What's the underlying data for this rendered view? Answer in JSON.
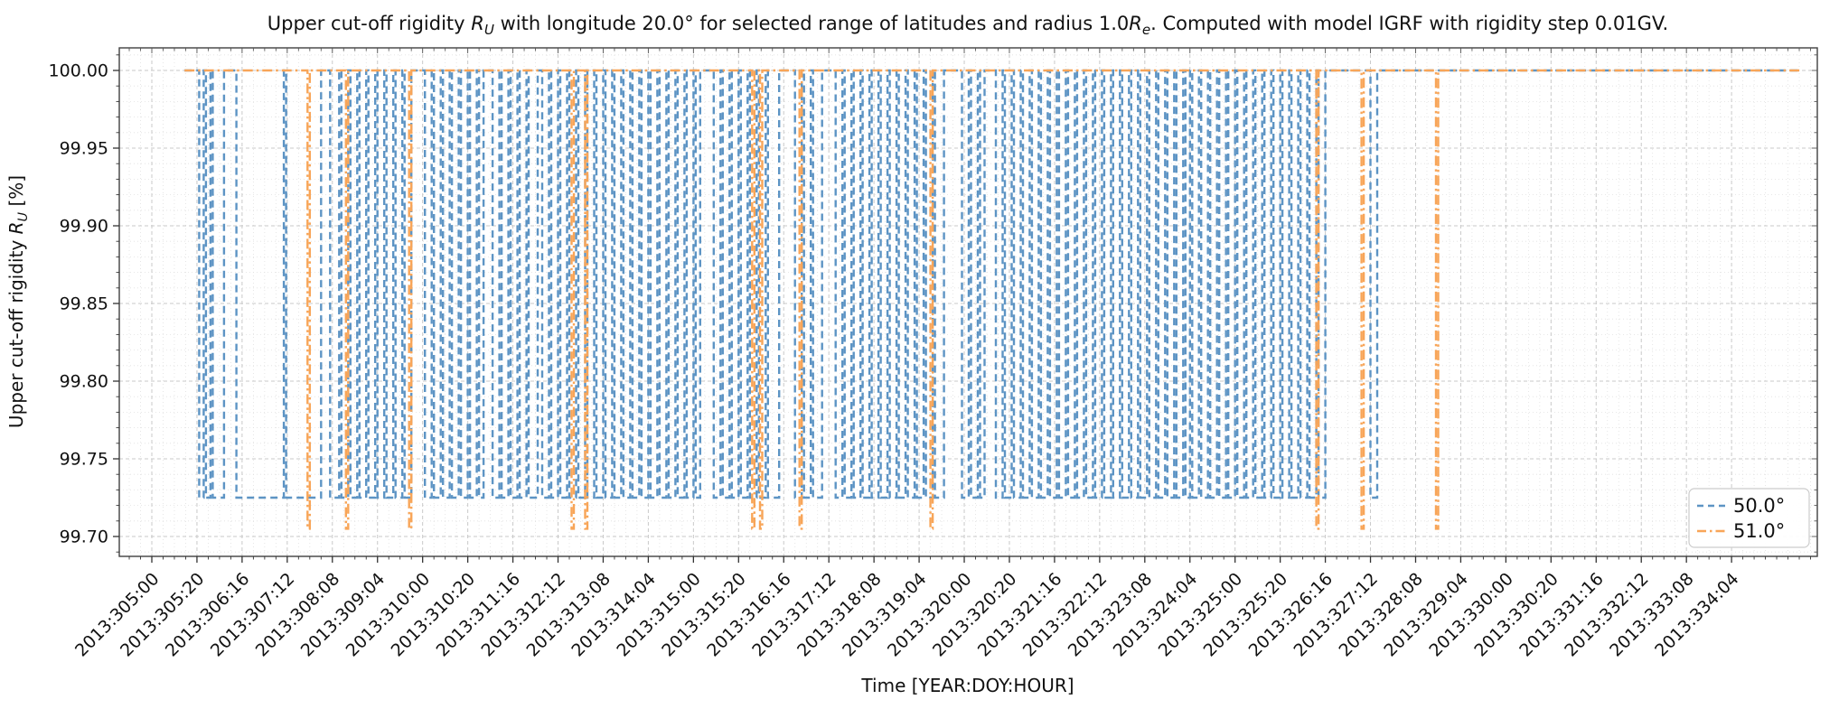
{
  "chart_data": {
    "type": "line",
    "title_plain": "Upper cut-off rigidity R_U with longitude 20.0° for selected range of latitudes and radius 1.0R_e. Computed with model IGRF with rigidity step 0.01GV.",
    "title_parts": [
      {
        "t": "Upper cut-off rigidity "
      },
      {
        "t": "R",
        "i": 1
      },
      {
        "t": "U",
        "i": 1,
        "s": 1
      },
      {
        "t": " with longitude 20.0° for selected range of latitudes and radius 1.0"
      },
      {
        "t": "R",
        "i": 1
      },
      {
        "t": "e",
        "i": 1,
        "s": 1
      },
      {
        "t": ". Computed with model IGRF with rigidity step 0.01GV."
      }
    ],
    "xlabel": "Time [YEAR:DOY:HOUR]",
    "ylabel_plain": "Upper cut-off rigidity R_U [%]",
    "ylabel_parts": [
      {
        "t": "Upper cut-off rigidity "
      },
      {
        "t": "R",
        "i": 1
      },
      {
        "t": "U",
        "i": 1,
        "s": 1
      },
      {
        "t": " [%]"
      }
    ],
    "x_axis": {
      "origin_label": "2013:305:00",
      "tick_interval_hours": 20,
      "tick_labels": [
        "2013:305:00",
        "2013:305:20",
        "2013:306:16",
        "2013:307:12",
        "2013:308:08",
        "2013:309:04",
        "2013:310:00",
        "2013:310:20",
        "2013:311:16",
        "2013:312:12",
        "2013:313:08",
        "2013:314:04",
        "2013:315:00",
        "2013:315:20",
        "2013:316:16",
        "2013:317:12",
        "2013:318:08",
        "2013:319:04",
        "2013:320:00",
        "2013:320:20",
        "2013:321:16",
        "2013:322:12",
        "2013:323:08",
        "2013:324:04",
        "2013:325:00",
        "2013:325:20",
        "2013:326:16",
        "2013:327:12",
        "2013:328:08",
        "2013:329:04",
        "2013:330:00",
        "2013:330:20",
        "2013:331:16",
        "2013:332:12",
        "2013:333:08",
        "2013:334:04"
      ]
    },
    "y_axis": {
      "tick_labels": [
        "100.00",
        "99.95",
        "99.90",
        "99.85",
        "99.80",
        "99.75",
        "99.70"
      ],
      "tick_values": [
        100.0,
        99.95,
        99.9,
        99.85,
        99.8,
        99.75,
        99.7
      ],
      "minor_step": 0.01,
      "ylim": [
        99.687,
        100.0145
      ]
    },
    "grid": {
      "major": true,
      "minor": true
    },
    "legend": {
      "position": "lower right",
      "entries": [
        "50.0°",
        "51.0°"
      ]
    },
    "series": [
      {
        "name": "50.0°",
        "color": "#5d94c4",
        "linestyle": "dashed",
        "high_value": 100.0,
        "low_value": 99.725,
        "start_hour": 14.5,
        "end_hour": 730.5,
        "low_intervals": [
          [
            21,
            23
          ],
          [
            24,
            26
          ],
          [
            27,
            32
          ],
          [
            37.5,
            58.5
          ],
          [
            59.5,
            75
          ],
          [
            79,
            83
          ],
          [
            84,
            87
          ],
          [
            88,
            91
          ],
          [
            92,
            95
          ],
          [
            96,
            99
          ],
          [
            100,
            103
          ],
          [
            104,
            107
          ],
          [
            108,
            111
          ],
          [
            112,
            115
          ],
          [
            121,
            124
          ],
          [
            125,
            128
          ],
          [
            129,
            132
          ],
          [
            133,
            136
          ],
          [
            137,
            140
          ],
          [
            141,
            144
          ],
          [
            145,
            147
          ],
          [
            151,
            154
          ],
          [
            155,
            158
          ],
          [
            159,
            162
          ],
          [
            163,
            166
          ],
          [
            167,
            171
          ],
          [
            173,
            176
          ],
          [
            177,
            180
          ],
          [
            181,
            184
          ],
          [
            185,
            188
          ],
          [
            189,
            192
          ],
          [
            193,
            196
          ],
          [
            197,
            200
          ],
          [
            201,
            204
          ],
          [
            205,
            208
          ],
          [
            209,
            212
          ],
          [
            213,
            216
          ],
          [
            217,
            220
          ],
          [
            221,
            224
          ],
          [
            225,
            228
          ],
          [
            229,
            232
          ],
          [
            233,
            236
          ],
          [
            237,
            240
          ],
          [
            241,
            243
          ],
          [
            249,
            252
          ],
          [
            253,
            256
          ],
          [
            257,
            260
          ],
          [
            261,
            264
          ],
          [
            265,
            268
          ],
          [
            269,
            272
          ],
          [
            273,
            278
          ],
          [
            285,
            288
          ],
          [
            289,
            292
          ],
          [
            293,
            297
          ],
          [
            303,
            306
          ],
          [
            307,
            310
          ],
          [
            311,
            314
          ],
          [
            315,
            318
          ],
          [
            319,
            322
          ],
          [
            323,
            326
          ],
          [
            327,
            330
          ],
          [
            331,
            334
          ],
          [
            335,
            338
          ],
          [
            339,
            342
          ],
          [
            343,
            346
          ],
          [
            347,
            351
          ],
          [
            359,
            362
          ],
          [
            363,
            366
          ],
          [
            367,
            369
          ],
          [
            374,
            377
          ],
          [
            378,
            381
          ],
          [
            382,
            385
          ],
          [
            386,
            389
          ],
          [
            390,
            393
          ],
          [
            394,
            397
          ],
          [
            398,
            401
          ],
          [
            402,
            405
          ],
          [
            406,
            409
          ],
          [
            410,
            413
          ],
          [
            414,
            417
          ],
          [
            418,
            421
          ],
          [
            422,
            425
          ],
          [
            426,
            429
          ],
          [
            430,
            433
          ],
          [
            434,
            437
          ],
          [
            438,
            441
          ],
          [
            442,
            445
          ],
          [
            446,
            449
          ],
          [
            450,
            453
          ],
          [
            454,
            457
          ],
          [
            458,
            460
          ],
          [
            461,
            464
          ],
          [
            465,
            468
          ],
          [
            469,
            472
          ],
          [
            473,
            476
          ],
          [
            477,
            480
          ],
          [
            481,
            484
          ],
          [
            485,
            488
          ],
          [
            489,
            492
          ],
          [
            493,
            496
          ],
          [
            497,
            500
          ],
          [
            501,
            504
          ],
          [
            505,
            508
          ],
          [
            509,
            512
          ],
          [
            513,
            516
          ],
          [
            517,
            520
          ],
          [
            540,
            543
          ]
        ]
      },
      {
        "name": "51.0°",
        "color": "#f8a558",
        "linestyle": "dashdot",
        "high_value": 100.0,
        "low_value": 99.705,
        "start_hour": 14.5,
        "end_hour": 730.5,
        "low_intervals": [
          [
            69,
            70
          ],
          [
            86,
            87
          ],
          [
            114,
            115
          ],
          [
            186,
            187
          ],
          [
            192,
            193
          ],
          [
            266,
            267
          ],
          [
            269.5,
            270.5
          ],
          [
            287,
            288
          ],
          [
            345,
            346
          ],
          [
            516,
            517
          ],
          [
            536,
            537
          ],
          [
            569,
            570
          ]
        ]
      }
    ]
  }
}
